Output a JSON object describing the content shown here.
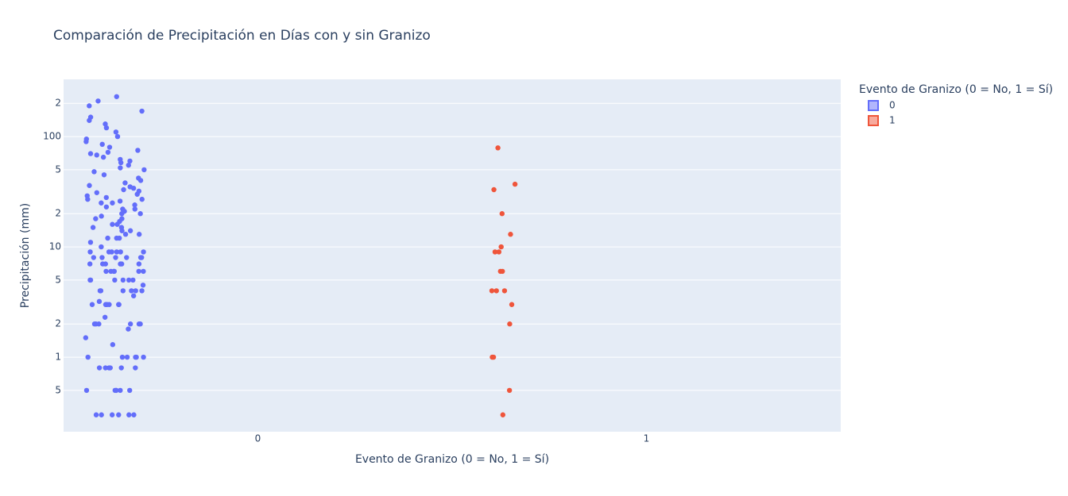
{
  "chart_data": {
    "type": "strip",
    "title": "Comparación de Precipitación en Días con y sin Granizo",
    "x_label": "Evento de Granizo (0 = No, 1 = Sí)",
    "y_label": "Precipitación (mm)",
    "legend_title": "Evento de Granizo (0 = No, 1 = Sí)",
    "categories": [
      "0",
      "1"
    ],
    "log_y": true,
    "grid": true,
    "ylim": [
      0.211,
      330
    ],
    "yticks": [
      {
        "value": 0.5,
        "label": "5"
      },
      1,
      2,
      5,
      10,
      {
        "value": 20,
        "label": "2"
      },
      {
        "value": 50,
        "label": "5"
      },
      100,
      {
        "value": 200,
        "label": "2"
      }
    ],
    "series": [
      {
        "name": "0",
        "color": "#636efa",
        "values": [
          0.3,
          0.3,
          0.3,
          0.3,
          0.3,
          0.3,
          0.5,
          0.5,
          0.5,
          0.5,
          0.5,
          0.5,
          0.8,
          0.8,
          0.8,
          0.8,
          0.8,
          0.8,
          1,
          1,
          1,
          1,
          1,
          1,
          2,
          2,
          2,
          2,
          2,
          2,
          3,
          3,
          3,
          3,
          3,
          3,
          4,
          4,
          4,
          4,
          4,
          4,
          5,
          5,
          5,
          5,
          5,
          5,
          6,
          6,
          6,
          6,
          6,
          6,
          7,
          7,
          7,
          7,
          7,
          7,
          8,
          8,
          8,
          8,
          8,
          8,
          9,
          9,
          9,
          9,
          9,
          9,
          1.3,
          1.5,
          1.8,
          2.3,
          3.2,
          3.6,
          4.5,
          10,
          11,
          12,
          12,
          13,
          14,
          14,
          15,
          15,
          16,
          17,
          18,
          19,
          20,
          20,
          21,
          22,
          23,
          24,
          25,
          25,
          26,
          27,
          28,
          30,
          31,
          32,
          33,
          35,
          36,
          38,
          40,
          12,
          16,
          22,
          18,
          27,
          13,
          29,
          34,
          42,
          45,
          48,
          50,
          52,
          55,
          58,
          60,
          62,
          65,
          68,
          70,
          72,
          75,
          80,
          85,
          90,
          95,
          100,
          110,
          120,
          130,
          140,
          150,
          170,
          190,
          210,
          230
        ]
      },
      {
        "name": "1",
        "color": "#ef553b",
        "values": [
          79,
          37,
          33,
          20,
          13,
          10,
          9,
          9,
          6,
          6,
          4,
          4,
          4,
          3,
          2,
          1,
          1,
          0.5,
          0.3
        ]
      }
    ]
  }
}
